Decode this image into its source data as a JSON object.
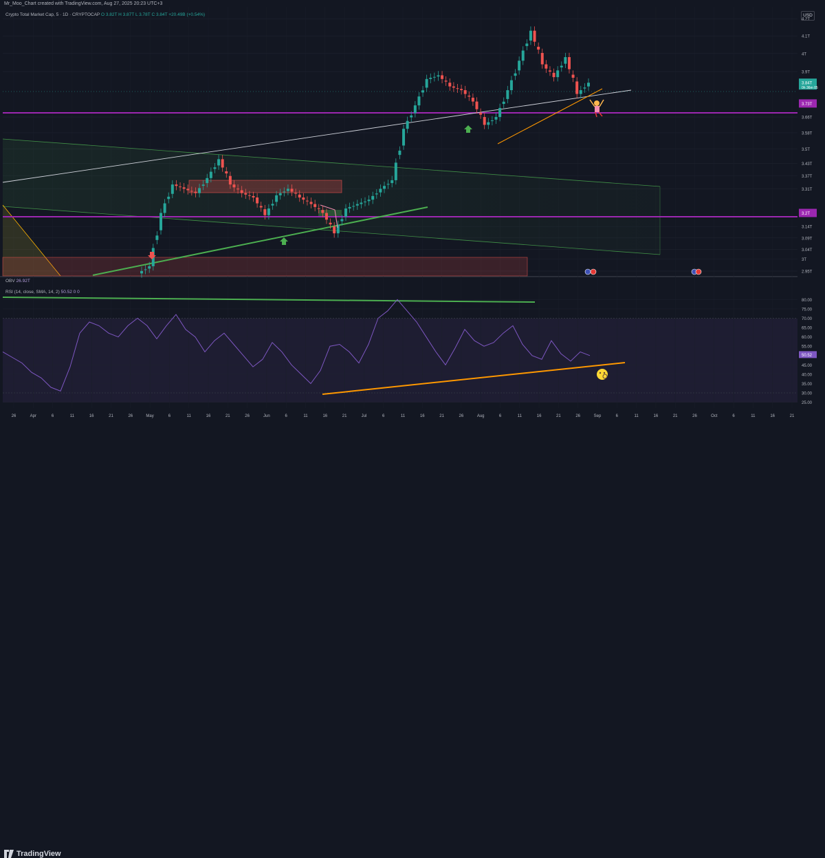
{
  "header": {
    "credit": "Mr_Moo_Chart created with TradingView.com, Aug 27, 2025 20:23 UTC+3",
    "legend_title": "Crypto Total Market Cap, 5 · 1D · CRYPTOCAP",
    "legend_ohlc": "O 3.82T  H 3.87T  L 3.78T  C 3.84T  +20.49B (+0.54%)",
    "currency": "USD"
  },
  "indicators": {
    "obv_label": "OBV",
    "obv_value": "26.92T",
    "rsi_label": "RSI (14, close, SMA, 14, 2)",
    "rsi_value": "50.52  0  0"
  },
  "footer": {
    "brand": "TradingView"
  },
  "colors": {
    "background": "#131722",
    "bull": "#26a69a",
    "bear": "#ef5350",
    "purple_level": "#9c27b0",
    "rsi_line": "#7e57c2",
    "green_trend": "#4caf50",
    "orange_trend": "#ff9800"
  },
  "chart_data": [
    {
      "type": "candlestick",
      "price_axis_ticks": [
        "4.2T",
        "4.1T",
        "4T",
        "3.9T",
        "3.84T",
        "3.73T",
        "3.66T",
        "3.58T",
        "3.5T",
        "3.43T",
        "3.37T",
        "3.31T",
        "3.2T",
        "3.14T",
        "3.09T",
        "3.04T",
        "3T",
        "2.95T"
      ],
      "current_price": "3.84T",
      "countdown": "0h 36m 05",
      "price_lines": [
        "3.73T",
        "3.2T"
      ],
      "x_ticks": [
        "26",
        "Apr",
        "6",
        "11",
        "16",
        "21",
        "26",
        "May",
        "6",
        "11",
        "16",
        "21",
        "26",
        "Jun",
        "6",
        "11",
        "16",
        "21",
        "Jul",
        "6",
        "11",
        "16",
        "21",
        "26",
        "Aug",
        "6",
        "11",
        "16",
        "21",
        "26",
        "Sep",
        "6",
        "11",
        "16",
        "21",
        "26",
        "Oct",
        "6",
        "11",
        "16",
        "21"
      ],
      "ylim": [
        2.93,
        4.27
      ],
      "scale": "log",
      "grid": true,
      "series": [
        {
          "dates": [
            "05-05",
            "05-08",
            "05-11",
            "05-14",
            "05-17",
            "05-20",
            "05-23",
            "05-26",
            "05-29",
            "06-01",
            "06-04",
            "06-07",
            "06-10",
            "06-13",
            "06-16",
            "06-19",
            "06-22",
            "06-25",
            "06-28",
            "07-01",
            "07-04",
            "07-07",
            "07-10",
            "07-13",
            "07-16",
            "07-19",
            "07-22",
            "07-25",
            "07-28",
            "07-31",
            "08-03",
            "08-06",
            "08-09",
            "08-12",
            "08-15",
            "08-18",
            "08-21",
            "08-24",
            "08-27"
          ],
          "close": [
            2.97,
            3.2,
            3.33,
            3.31,
            3.29,
            3.36,
            3.45,
            3.33,
            3.29,
            3.27,
            3.19,
            3.28,
            3.31,
            3.27,
            3.24,
            3.2,
            3.11,
            3.22,
            3.24,
            3.26,
            3.31,
            3.35,
            3.6,
            3.72,
            3.86,
            3.88,
            3.82,
            3.8,
            3.74,
            3.62,
            3.66,
            3.8,
            3.96,
            4.13,
            3.94,
            3.87,
            3.98,
            3.78,
            3.84
          ]
        }
      ]
    },
    {
      "type": "line",
      "name": "RSI",
      "axis_ticks": [
        "80.00",
        "75.00",
        "70.00",
        "65.00",
        "60.00",
        "55.00",
        "50.52",
        "45.00",
        "40.00",
        "35.00",
        "30.00",
        "25.00"
      ],
      "ylim": [
        23,
        82
      ],
      "series": [
        {
          "values": [
            52,
            49,
            46,
            41,
            38,
            33,
            31,
            44,
            62,
            68,
            66,
            62,
            60,
            66,
            70,
            66,
            59,
            66,
            72,
            64,
            60,
            52,
            58,
            62,
            56,
            50,
            44,
            48,
            57,
            52,
            45,
            40,
            35,
            42,
            55,
            56,
            52,
            46,
            56,
            70,
            74,
            80,
            74,
            68,
            60,
            52,
            45,
            54,
            64,
            58,
            55,
            57,
            62,
            66,
            56,
            50,
            48,
            58,
            51,
            47,
            52,
            50
          ]
        }
      ]
    }
  ]
}
